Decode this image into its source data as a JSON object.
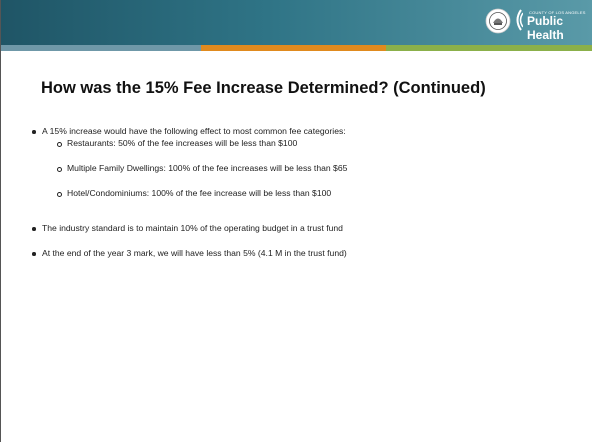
{
  "header": {
    "logo_small": "County of Los Angeles",
    "logo_name": "Public Health"
  },
  "title": "How was the 15% Fee Increase Determined? (Continued)",
  "bullets": [
    {
      "text": "A 15% increase would have the following effect to most common fee categories:",
      "subitems": [
        "Restaurants: 50% of the fee increases will be less than $100",
        "Multiple Family Dwellings: 100% of the fee increases will be less than $65",
        "Hotel/Condominiums: 100% of the fee increase will be less than $100"
      ]
    },
    {
      "text": "The industry standard is to maintain 10% of the operating budget in a trust fund",
      "subitems": []
    },
    {
      "text": "At the end of the year 3 mark, we will have less than 5% (4.1 M in the trust fund)",
      "subitems": []
    }
  ]
}
